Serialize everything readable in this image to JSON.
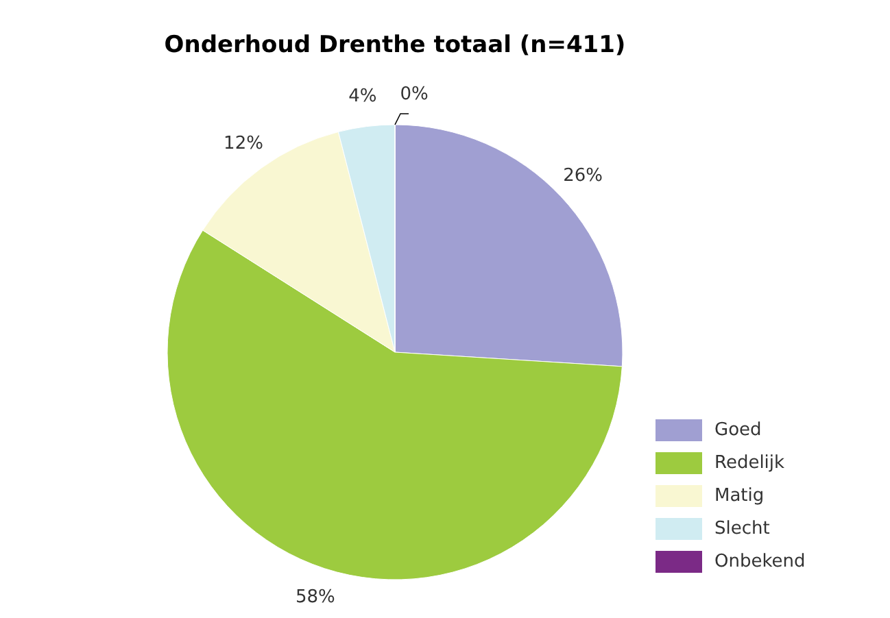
{
  "chart_data": {
    "type": "pie",
    "title": "Onderhoud Drenthe totaal (n=411)",
    "categories": [
      "Goed",
      "Redelijk",
      "Matig",
      "Slecht",
      "Onbekend"
    ],
    "values": [
      26,
      58,
      12,
      4,
      0
    ],
    "colors": [
      "#a09fd2",
      "#9dcb3f",
      "#f9f7d2",
      "#d0ecf2",
      "#7b2a86"
    ],
    "value_labels": [
      "26%",
      "58%",
      "12%",
      "4%",
      "0%"
    ],
    "legend": "bottom right"
  }
}
